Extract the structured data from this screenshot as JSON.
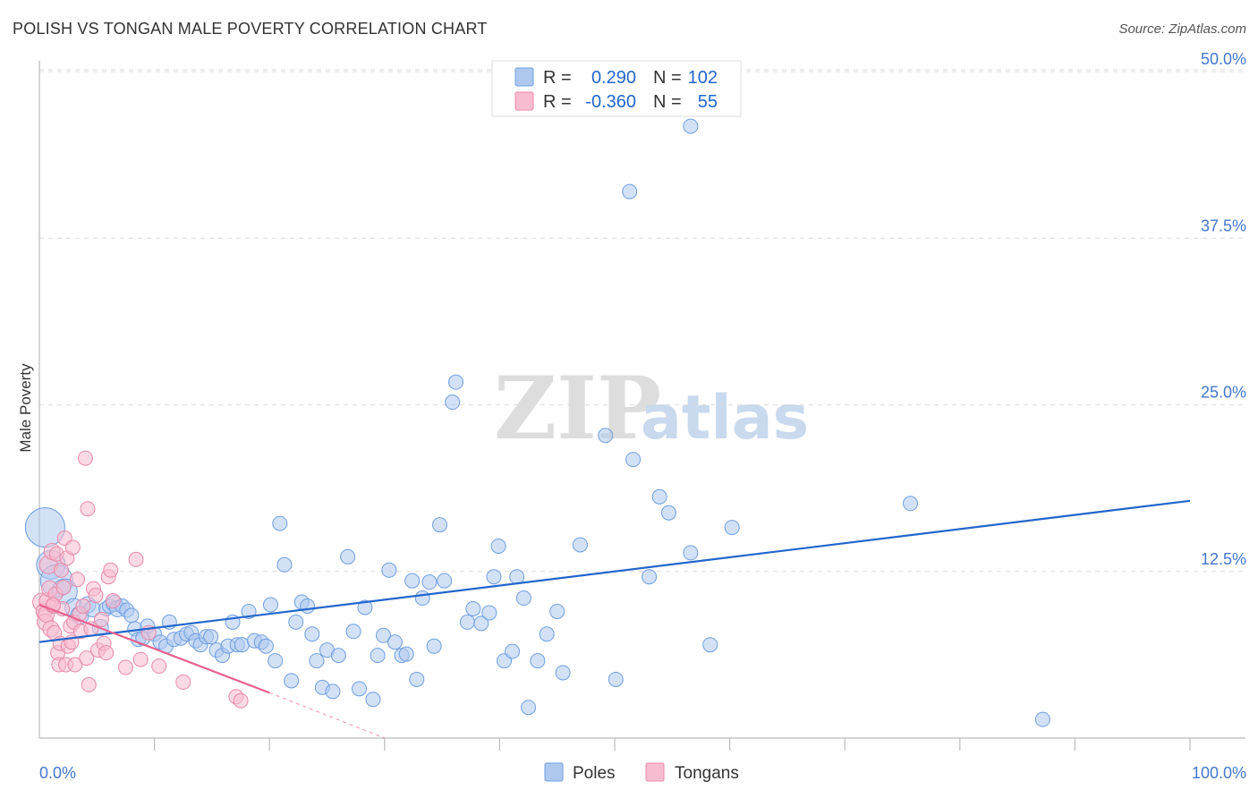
{
  "header": {
    "title": "POLISH VS TONGAN MALE POVERTY CORRELATION CHART",
    "source": "Source: ZipAtlas.com"
  },
  "watermark": {
    "zip": "ZIP",
    "atlas": "atlas"
  },
  "legend_box": {
    "rows": [
      {
        "r_label": "R =",
        "r_value": "0.290",
        "n_label": "N =",
        "n_value": "102",
        "color": "#aec8f0",
        "stroke": "#6f9fdf"
      },
      {
        "r_label": "R =",
        "r_value": "-0.360",
        "n_label": "N =",
        "n_value": "55",
        "color": "#f8bcd0",
        "stroke": "#e889a8"
      }
    ]
  },
  "bottom_legend": [
    {
      "label": "Poles",
      "color": "#aec8f0",
      "stroke": "#6f9fdf"
    },
    {
      "label": "Tongans",
      "color": "#f8bcd0",
      "stroke": "#e889a8"
    }
  ],
  "chart_data": {
    "type": "scatter",
    "ylabel": "Male Poverty",
    "xlabel": "",
    "xlim": [
      0,
      100
    ],
    "ylim": [
      0,
      50
    ],
    "x_tick_labels": [
      "0.0%",
      "100.0%"
    ],
    "y_ticks": [
      12.5,
      25.0,
      37.5,
      50.0
    ],
    "y_tick_labels": [
      "12.5%",
      "25.0%",
      "37.5%",
      "50.0%"
    ],
    "grid": true,
    "legend_position": "top-center",
    "series": [
      {
        "name": "Poles",
        "color": "#aec8f0",
        "stroke": "#6f9fdf",
        "trend": {
          "x": [
            0,
            100
          ],
          "y": [
            7.2,
            17.8
          ],
          "color": "#2266cc"
        },
        "points": [
          [
            0.5,
            15.8,
            22
          ],
          [
            1.0,
            13.0,
            16
          ],
          [
            1.5,
            11.8,
            18
          ],
          [
            2.2,
            11.0,
            14
          ],
          [
            3.0,
            9.8,
            10
          ],
          [
            3.5,
            9.2,
            10
          ],
          [
            4.2,
            10.0,
            9
          ],
          [
            4.6,
            9.7,
            9
          ],
          [
            5.3,
            8.3,
            9
          ],
          [
            5.8,
            9.7,
            8
          ],
          [
            6.1,
            9.9,
            8
          ],
          [
            6.5,
            10.1,
            9
          ],
          [
            6.8,
            9.7,
            9
          ],
          [
            7.2,
            9.9,
            8
          ],
          [
            7.6,
            9.6,
            8
          ],
          [
            8.0,
            9.2,
            8
          ],
          [
            8.3,
            8.2,
            8
          ],
          [
            8.6,
            7.4,
            8
          ],
          [
            9.0,
            7.5,
            8
          ],
          [
            9.4,
            8.4,
            8
          ],
          [
            10.0,
            7.8,
            8
          ],
          [
            10.5,
            7.2,
            8
          ],
          [
            11.0,
            6.9,
            8
          ],
          [
            11.3,
            8.7,
            8
          ],
          [
            11.7,
            7.4,
            8
          ],
          [
            12.3,
            7.5,
            8
          ],
          [
            12.8,
            7.8,
            8
          ],
          [
            13.2,
            7.9,
            8
          ],
          [
            13.6,
            7.3,
            8
          ],
          [
            14.0,
            7.0,
            8
          ],
          [
            14.5,
            7.6,
            8
          ],
          [
            14.9,
            7.6,
            8
          ],
          [
            15.4,
            6.6,
            8
          ],
          [
            15.9,
            6.2,
            8
          ],
          [
            16.4,
            6.9,
            8
          ],
          [
            16.8,
            8.7,
            8
          ],
          [
            17.2,
            7.0,
            8
          ],
          [
            17.6,
            7.0,
            8
          ],
          [
            18.2,
            9.5,
            8
          ],
          [
            18.7,
            7.3,
            8
          ],
          [
            19.3,
            7.2,
            8
          ],
          [
            19.7,
            6.9,
            8
          ],
          [
            20.1,
            10.0,
            8
          ],
          [
            20.5,
            5.8,
            8
          ],
          [
            20.9,
            16.1,
            8
          ],
          [
            21.3,
            13.0,
            8
          ],
          [
            21.9,
            4.3,
            8
          ],
          [
            22.3,
            8.7,
            8
          ],
          [
            22.8,
            10.2,
            8
          ],
          [
            23.3,
            9.9,
            8
          ],
          [
            23.7,
            7.8,
            8
          ],
          [
            24.1,
            5.8,
            8
          ],
          [
            24.6,
            3.8,
            8
          ],
          [
            25.0,
            6.6,
            8
          ],
          [
            25.5,
            3.5,
            8
          ],
          [
            26.0,
            6.2,
            8
          ],
          [
            26.8,
            13.6,
            8
          ],
          [
            27.3,
            8.0,
            8
          ],
          [
            27.8,
            3.7,
            8
          ],
          [
            28.3,
            9.8,
            8
          ],
          [
            29.0,
            2.9,
            8
          ],
          [
            29.4,
            6.2,
            8
          ],
          [
            29.9,
            7.7,
            8
          ],
          [
            30.4,
            12.6,
            8
          ],
          [
            30.9,
            7.2,
            8
          ],
          [
            31.5,
            6.2,
            8
          ],
          [
            31.9,
            6.3,
            8
          ],
          [
            32.4,
            11.8,
            8
          ],
          [
            32.8,
            4.4,
            8
          ],
          [
            33.3,
            10.5,
            8
          ],
          [
            33.9,
            11.7,
            8
          ],
          [
            34.3,
            6.9,
            8
          ],
          [
            34.8,
            16.0,
            8
          ],
          [
            35.2,
            11.8,
            8
          ],
          [
            35.9,
            25.2,
            8
          ],
          [
            36.2,
            26.7,
            8
          ],
          [
            37.2,
            8.7,
            8
          ],
          [
            37.7,
            9.7,
            8
          ],
          [
            38.4,
            8.6,
            8
          ],
          [
            39.1,
            9.4,
            8
          ],
          [
            39.5,
            12.1,
            8
          ],
          [
            39.9,
            14.4,
            8
          ],
          [
            40.4,
            5.8,
            8
          ],
          [
            41.1,
            6.5,
            8
          ],
          [
            41.5,
            12.1,
            8
          ],
          [
            42.1,
            10.5,
            8
          ],
          [
            42.5,
            2.3,
            8
          ],
          [
            43.3,
            5.8,
            8
          ],
          [
            44.1,
            7.8,
            8
          ],
          [
            45.0,
            9.5,
            8
          ],
          [
            45.5,
            4.9,
            8
          ],
          [
            47.0,
            14.5,
            8
          ],
          [
            49.2,
            22.7,
            8
          ],
          [
            50.1,
            4.4,
            8
          ],
          [
            51.3,
            41.0,
            8
          ],
          [
            51.6,
            20.9,
            8
          ],
          [
            53.0,
            12.1,
            8
          ],
          [
            53.9,
            18.1,
            8
          ],
          [
            54.7,
            16.9,
            8
          ],
          [
            56.6,
            13.9,
            8
          ],
          [
            58.3,
            7.0,
            8
          ],
          [
            60.2,
            15.8,
            8
          ],
          [
            75.7,
            17.6,
            8
          ],
          [
            87.2,
            1.4,
            8
          ],
          [
            56.6,
            45.9,
            8
          ]
        ]
      },
      {
        "name": "Tongans",
        "color": "#f8bcd0",
        "stroke": "#e889a8",
        "trend": {
          "x": [
            0,
            20
          ],
          "y": [
            10.0,
            3.4
          ],
          "color": "#e8608e",
          "dash_x": [
            20,
            30
          ],
          "dash_y": [
            3.4,
            0
          ]
        },
        "points": [
          [
            0.2,
            10.2,
            10
          ],
          [
            0.4,
            9.5,
            9
          ],
          [
            0.5,
            8.7,
            9
          ],
          [
            0.7,
            10.3,
            9
          ],
          [
            0.6,
            9.3,
            9
          ],
          [
            0.8,
            13.0,
            10
          ],
          [
            0.9,
            11.2,
            9
          ],
          [
            1.0,
            8.2,
            9
          ],
          [
            1.1,
            14.0,
            9
          ],
          [
            1.2,
            9.9,
            8
          ],
          [
            1.3,
            7.9,
            8
          ],
          [
            1.4,
            10.8,
            8
          ],
          [
            1.5,
            13.8,
            8
          ],
          [
            1.6,
            6.4,
            8
          ],
          [
            1.7,
            5.5,
            8
          ],
          [
            1.8,
            7.1,
            8
          ],
          [
            1.9,
            12.6,
            8
          ],
          [
            2.0,
            9.7,
            8
          ],
          [
            2.1,
            11.3,
            8
          ],
          [
            2.2,
            15.0,
            8
          ],
          [
            2.3,
            5.5,
            8
          ],
          [
            2.4,
            13.5,
            8
          ],
          [
            2.5,
            6.9,
            8
          ],
          [
            2.7,
            8.4,
            8
          ],
          [
            2.8,
            7.2,
            8
          ],
          [
            2.9,
            14.3,
            8
          ],
          [
            3.0,
            8.7,
            8
          ],
          [
            3.1,
            5.5,
            8
          ],
          [
            3.3,
            11.9,
            8
          ],
          [
            3.5,
            9.3,
            8
          ],
          [
            3.6,
            8.0,
            8
          ],
          [
            3.8,
            9.9,
            8
          ],
          [
            4.0,
            21.0,
            8
          ],
          [
            4.1,
            6.0,
            8
          ],
          [
            4.2,
            17.2,
            8
          ],
          [
            4.3,
            4.0,
            8
          ],
          [
            4.5,
            8.2,
            8
          ],
          [
            4.7,
            11.2,
            8
          ],
          [
            4.9,
            10.7,
            8
          ],
          [
            5.1,
            6.6,
            8
          ],
          [
            5.4,
            8.9,
            8
          ],
          [
            5.6,
            7.1,
            8
          ],
          [
            5.8,
            6.4,
            8
          ],
          [
            6.0,
            12.1,
            8
          ],
          [
            6.2,
            12.6,
            8
          ],
          [
            6.4,
            10.3,
            8
          ],
          [
            7.5,
            5.3,
            8
          ],
          [
            8.4,
            13.4,
            8
          ],
          [
            8.8,
            5.9,
            8
          ],
          [
            9.5,
            7.9,
            8
          ],
          [
            10.4,
            5.4,
            8
          ],
          [
            12.5,
            4.2,
            8
          ],
          [
            17.1,
            3.1,
            8
          ],
          [
            17.5,
            2.8,
            8
          ],
          [
            1.2,
            10.0,
            8
          ]
        ]
      }
    ]
  }
}
